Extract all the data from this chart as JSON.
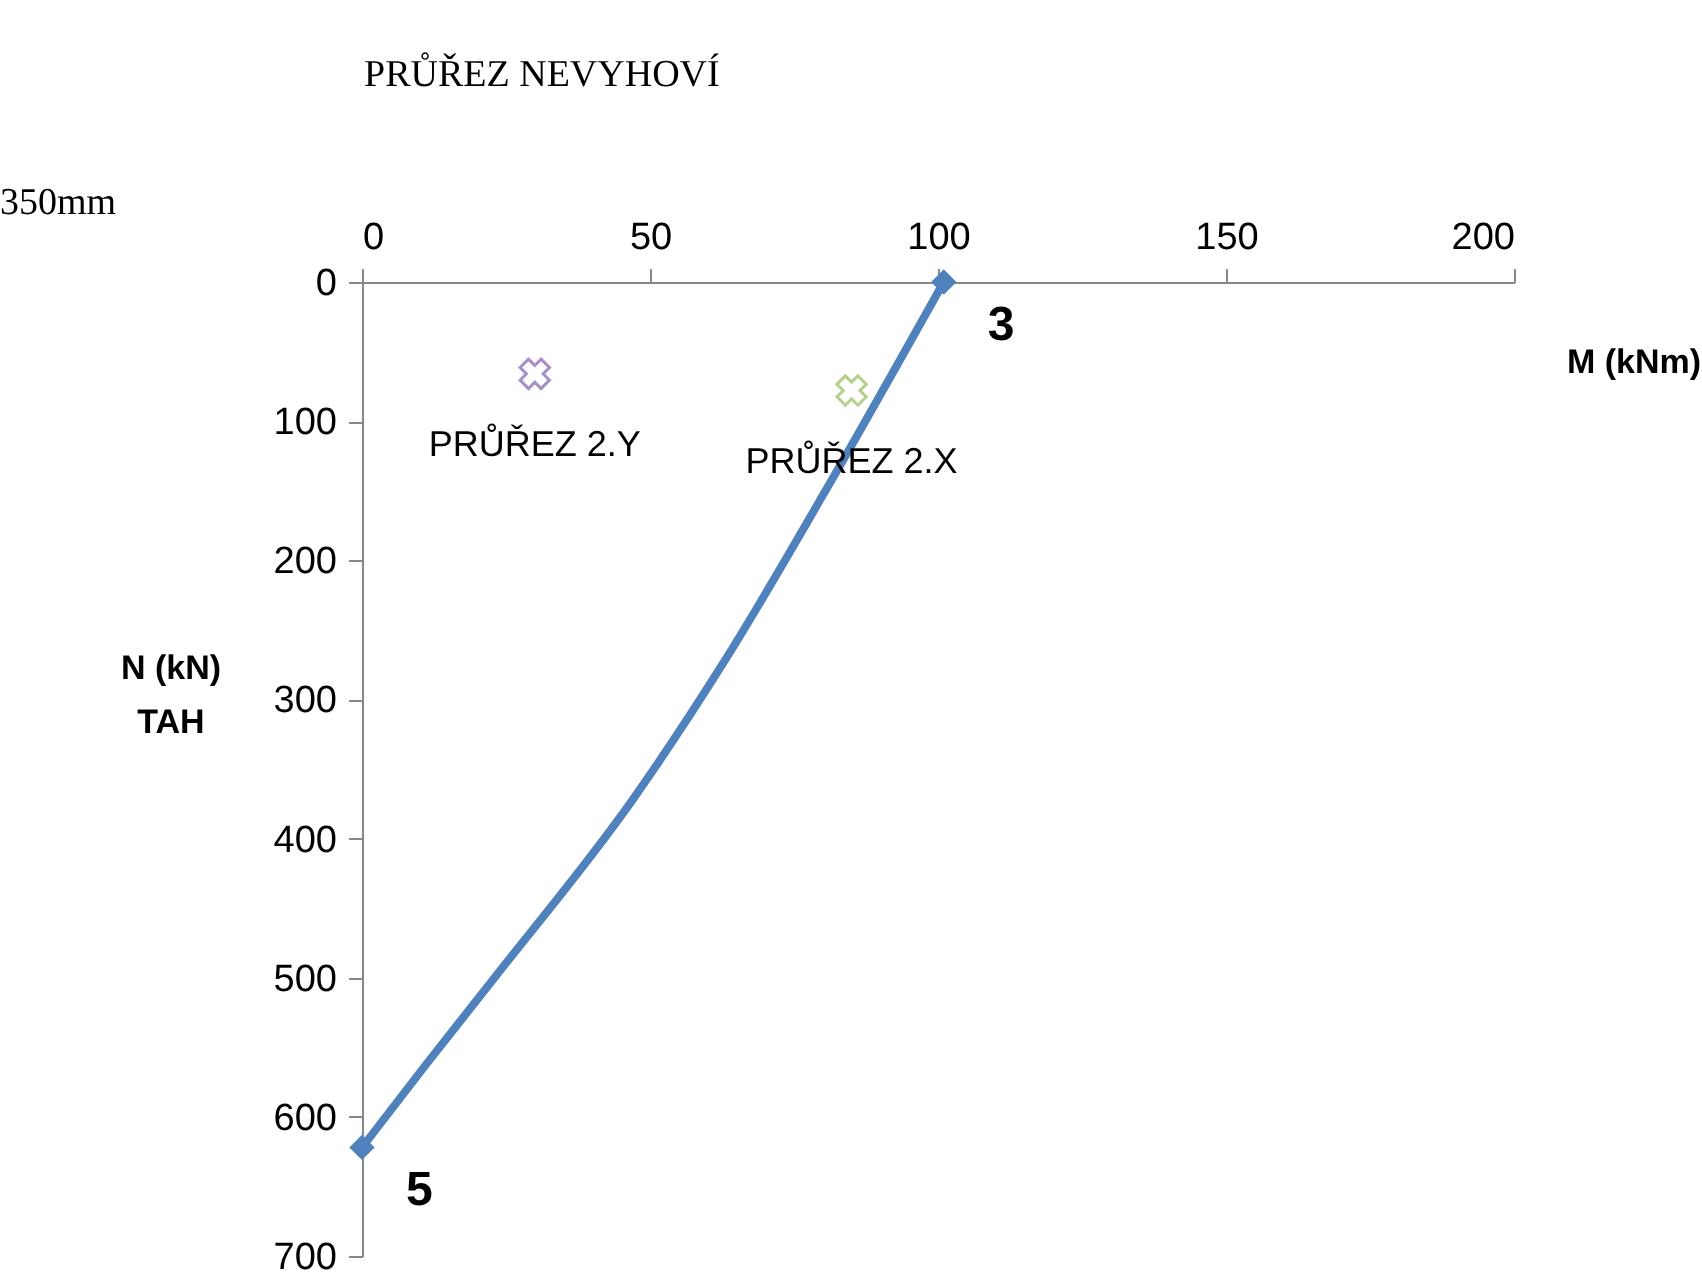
{
  "chart_data": {
    "type": "line",
    "title": "PRŮŘEZ NEVYHOVÍ",
    "xlabel": "M  (kNm)",
    "ylabel": "N (kN)\nTAH",
    "annotations": [
      "350mm",
      {
        "text": "3",
        "x": 101,
        "y": 0
      },
      {
        "text": "5",
        "x": 0,
        "y": 622
      }
    ],
    "xlim": [
      0,
      200
    ],
    "xticks": [
      0,
      50,
      100,
      150,
      200
    ],
    "ylim": [
      700,
      0
    ],
    "yticks": [
      0,
      100,
      200,
      300,
      400,
      500,
      600,
      700
    ],
    "grid": false,
    "series": [
      {
        "color": "#4f81bd",
        "marker": "none",
        "line_style": "solid",
        "x": [
          101,
          82,
          63,
          47,
          23,
          11,
          0
        ],
        "values": [
          0,
          139,
          272,
          372,
          500,
          563,
          622
        ]
      },
      {
        "type": "scatter",
        "color": "#4f81bd",
        "marker": "diamond",
        "x": [
          101,
          0
        ],
        "values": [
          0,
          622
        ]
      },
      {
        "type": "scatter",
        "name": "PRŮŘEZ 2.Y",
        "color": "#a58fc6",
        "marker": "cross",
        "x": [
          30
        ],
        "values": [
          66
        ]
      },
      {
        "type": "scatter",
        "name": "PRŮŘEZ 2.X",
        "color": "#b4d08a",
        "marker": "cross",
        "x": [
          85
        ],
        "values": [
          78
        ]
      }
    ]
  }
}
